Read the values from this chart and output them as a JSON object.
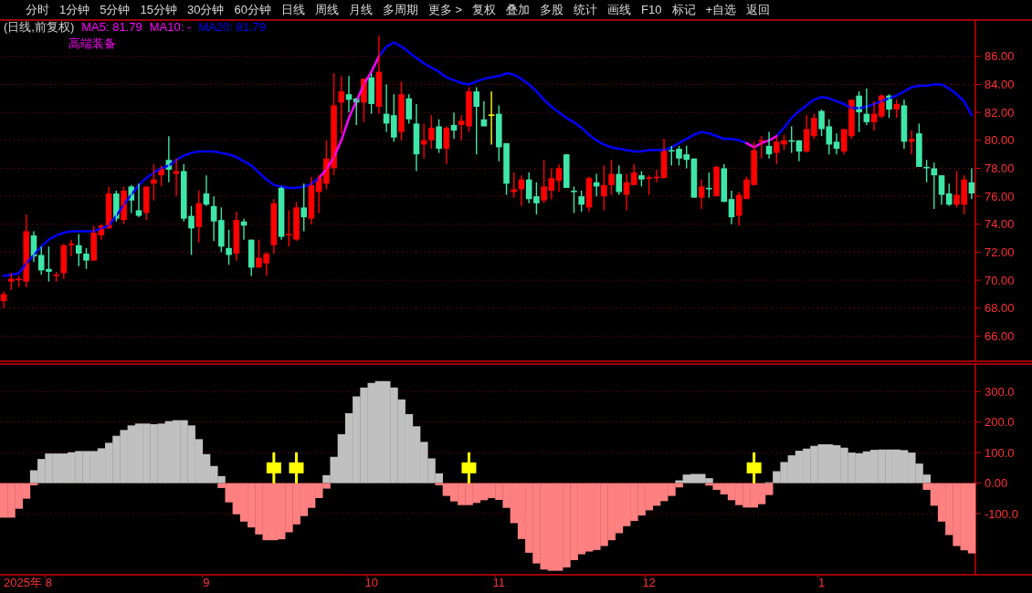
{
  "chart_data": [
    {
      "type": "other",
      "annotations": [
        "分时",
        "1分钟",
        "5分钟",
        "15分钟",
        "30分钟",
        "60分钟",
        "日线",
        "周线",
        "月线",
        "多周期",
        "更多 >",
        "复权",
        "叠加",
        "多股",
        "统计",
        "画线",
        "F10",
        "标记",
        "+自选",
        "返回"
      ]
    },
    {
      "type": "candlestick",
      "annotations": [
        "(日线,前复权)",
        "MA5: 81.79",
        "MA10: -",
        "MA20: 81.79",
        "高端装备"
      ],
      "categories": [
        null,
        null,
        null,
        null,
        null,
        null,
        "8",
        null,
        null,
        null,
        null,
        null,
        null,
        null,
        null,
        null,
        null,
        null,
        null,
        null,
        null,
        null,
        null,
        null,
        null,
        null,
        null,
        "9",
        null,
        null,
        null,
        null,
        null,
        null,
        null,
        null,
        null,
        null,
        null,
        null,
        null,
        null,
        null,
        null,
        null,
        null,
        null,
        null,
        null,
        "10",
        null,
        null,
        null,
        null,
        null,
        null,
        null,
        null,
        null,
        null,
        null,
        null,
        null,
        null,
        null,
        null,
        "11",
        null,
        null,
        null,
        null,
        null,
        null,
        null,
        null,
        null,
        null,
        null,
        null,
        null,
        null,
        null,
        null,
        null,
        null,
        null,
        "12",
        null,
        null,
        null,
        null,
        null,
        null,
        null,
        null,
        null,
        null,
        null,
        null,
        null,
        null,
        null,
        null,
        null,
        null,
        null,
        null,
        null,
        null,
        "1",
        null,
        null,
        null,
        null,
        null,
        null,
        null,
        null,
        null,
        null,
        null,
        null,
        null,
        null,
        null,
        null,
        null,
        null,
        null,
        null
      ],
      "tick_labels": "y",
      "grid": "y",
      "ylim": [
        64.2,
        88.6
      ],
      "yticks": [
        {
          "value": 66,
          "label": "66.00"
        },
        {
          "value": 68,
          "label": "68.00"
        },
        {
          "value": 70,
          "label": "70.00"
        },
        {
          "value": 72,
          "label": "72.00"
        },
        {
          "value": 74,
          "label": "74.00"
        },
        {
          "value": 76,
          "label": "76.00"
        },
        {
          "value": 78,
          "label": "78.00"
        },
        {
          "value": 80,
          "label": "80.00"
        },
        {
          "value": 82,
          "label": "82.00"
        },
        {
          "value": 84,
          "label": "84.00"
        },
        {
          "value": 86,
          "label": "86.00"
        }
      ],
      "ohlc": [
        [
          68.5,
          69.2,
          68.0,
          69.0
        ],
        [
          69.9,
          70.5,
          69.3,
          70.1
        ],
        [
          70.0,
          70.3,
          69.5,
          70.1
        ],
        [
          69.9,
          74.7,
          69.5,
          73.5
        ],
        [
          73.2,
          73.5,
          71.3,
          71.7
        ],
        [
          71.8,
          72.4,
          70.4,
          70.7
        ],
        [
          70.8,
          72.4,
          69.9,
          70.6
        ],
        [
          70.3,
          70.6,
          69.9,
          70.4
        ],
        [
          70.5,
          72.6,
          70.1,
          72.5
        ],
        [
          72.5,
          72.9,
          71.7,
          72.6
        ],
        [
          72.5,
          73.3,
          71.0,
          71.9
        ],
        [
          71.9,
          72.3,
          70.8,
          71.4
        ],
        [
          71.4,
          73.9,
          71.4,
          73.4
        ],
        [
          73.2,
          74.0,
          72.9,
          73.9
        ],
        [
          73.7,
          76.7,
          73.7,
          76.2
        ],
        [
          76.2,
          76.4,
          74.2,
          74.4
        ],
        [
          74.3,
          76.7,
          74.0,
          76.4
        ],
        [
          76.7,
          76.8,
          74.8,
          75.7
        ],
        [
          75.0,
          76.9,
          74.5,
          74.6
        ],
        [
          74.8,
          76.7,
          74.3,
          76.7
        ],
        [
          76.9,
          78.3,
          75.7,
          77.2
        ],
        [
          77.5,
          78.2,
          76.7,
          78.0
        ],
        [
          78.6,
          80.3,
          77.0,
          77.9
        ],
        [
          77.6,
          78.7,
          76.0,
          77.8
        ],
        [
          77.8,
          78.3,
          74.2,
          74.4
        ],
        [
          74.6,
          75.3,
          71.8,
          73.7
        ],
        [
          73.8,
          76.4,
          72.7,
          75.5
        ],
        [
          76.2,
          77.5,
          75.3,
          75.4
        ],
        [
          75.3,
          76.0,
          72.8,
          74.2
        ],
        [
          74.3,
          75.2,
          72.0,
          72.4
        ],
        [
          72.3,
          73.6,
          71.1,
          71.8
        ],
        [
          71.9,
          74.9,
          71.4,
          74.3
        ],
        [
          74.2,
          74.4,
          72.9,
          73.9
        ],
        [
          72.9,
          72.9,
          70.3,
          70.9
        ],
        [
          70.9,
          72.9,
          70.9,
          71.6
        ],
        [
          71.2,
          72.0,
          70.3,
          71.9
        ],
        [
          72.5,
          75.8,
          71.9,
          75.5
        ],
        [
          76.6,
          76.7,
          72.9,
          73.1
        ],
        [
          73.2,
          75.0,
          72.4,
          73.3
        ],
        [
          72.9,
          75.6,
          72.8,
          75.2
        ],
        [
          75.2,
          76.9,
          73.5,
          74.5
        ],
        [
          74.4,
          77.4,
          74.0,
          76.8
        ],
        [
          76.3,
          77.5,
          74.8,
          77.3
        ],
        [
          76.9,
          80.0,
          76.5,
          78.7
        ],
        [
          78.0,
          84.8,
          77.5,
          82.5
        ],
        [
          82.7,
          84.6,
          80.5,
          83.5
        ],
        [
          83.3,
          84.6,
          82.0,
          82.9
        ],
        [
          83.0,
          83.0,
          81.1,
          82.7
        ],
        [
          82.7,
          84.4,
          81.3,
          84.4
        ],
        [
          84.5,
          84.8,
          81.9,
          82.6
        ],
        [
          82.4,
          87.5,
          81.9,
          84.9
        ],
        [
          81.9,
          84.0,
          80.6,
          81.2
        ],
        [
          81.8,
          83.3,
          79.9,
          80.2
        ],
        [
          80.6,
          84.2,
          80.0,
          83.3
        ],
        [
          83.0,
          83.3,
          81.2,
          81.5
        ],
        [
          81.2,
          82.6,
          77.8,
          79.0
        ],
        [
          79.7,
          81.2,
          78.7,
          80.0
        ],
        [
          80.0,
          81.8,
          79.4,
          80.9
        ],
        [
          81.0,
          81.5,
          79.1,
          79.4
        ],
        [
          79.4,
          81.0,
          78.3,
          80.9
        ],
        [
          81.1,
          82.0,
          80.1,
          80.7
        ],
        [
          81.1,
          81.8,
          80.0,
          81.4
        ],
        [
          81.0,
          83.8,
          80.6,
          83.5
        ],
        [
          83.5,
          83.8,
          79.0,
          82.4
        ],
        [
          81.5,
          82.8,
          81.0,
          81.0
        ],
        [
          81.8,
          83.5,
          79.7,
          81.8
        ],
        [
          81.9,
          82.5,
          78.5,
          79.5
        ],
        [
          79.8,
          79.8,
          76.1,
          76.9
        ],
        [
          76.3,
          77.7,
          75.9,
          76.5
        ],
        [
          76.5,
          77.5,
          75.3,
          77.2
        ],
        [
          77.2,
          77.7,
          75.5,
          75.8
        ],
        [
          76.0,
          77.0,
          74.7,
          75.5
        ],
        [
          75.7,
          78.6,
          75.5,
          76.7
        ],
        [
          76.4,
          78.0,
          75.8,
          77.3
        ],
        [
          77.1,
          78.3,
          76.3,
          78.0
        ],
        [
          79.0,
          79.0,
          76.6,
          76.6
        ],
        [
          76.4,
          76.7,
          74.8,
          76.3
        ],
        [
          76.0,
          76.4,
          74.9,
          75.4
        ],
        [
          75.2,
          77.4,
          74.9,
          77.3
        ],
        [
          77.0,
          77.6,
          76.0,
          76.7
        ],
        [
          76.0,
          78.2,
          75.0,
          76.8
        ],
        [
          76.8,
          78.6,
          76.1,
          77.6
        ],
        [
          77.6,
          78.2,
          76.1,
          76.3
        ],
        [
          76.1,
          77.6,
          75.0,
          77.0
        ],
        [
          76.8,
          78.3,
          76.8,
          77.7
        ],
        [
          77.5,
          77.8,
          76.7,
          77.2
        ],
        [
          77.3,
          77.5,
          76.1,
          77.3
        ],
        [
          77.3,
          77.9,
          77.0,
          77.4
        ],
        [
          77.3,
          80.1,
          77.3,
          79.3
        ],
        [
          79.3,
          79.6,
          78.2,
          79.2
        ],
        [
          79.4,
          79.6,
          78.2,
          78.7
        ],
        [
          79.0,
          79.6,
          78.0,
          78.6
        ],
        [
          78.7,
          78.7,
          75.9,
          75.9
        ],
        [
          75.9,
          77.2,
          75.1,
          76.7
        ],
        [
          76.6,
          77.7,
          75.9,
          76.5
        ],
        [
          76.0,
          78.2,
          76.0,
          78.1
        ],
        [
          78.0,
          78.3,
          75.6,
          75.6
        ],
        [
          75.8,
          76.4,
          74.0,
          74.5
        ],
        [
          74.6,
          76.3,
          73.9,
          76.1
        ],
        [
          75.8,
          77.4,
          75.8,
          77.2
        ],
        [
          76.8,
          79.9,
          76.8,
          79.3
        ],
        [
          79.9,
          80.3,
          78.7,
          80.0
        ],
        [
          79.6,
          80.6,
          78.7,
          79.0
        ],
        [
          79.1,
          80.2,
          78.3,
          79.9
        ],
        [
          79.7,
          80.4,
          79.3,
          80.0
        ],
        [
          80.0,
          81.0,
          79.1,
          79.9
        ],
        [
          80.0,
          80.0,
          78.5,
          79.2
        ],
        [
          79.2,
          81.8,
          79.1,
          80.8
        ],
        [
          80.3,
          81.9,
          80.1,
          81.6
        ],
        [
          82.1,
          82.2,
          80.3,
          80.8
        ],
        [
          81.0,
          81.5,
          79.0,
          79.7
        ],
        [
          79.9,
          80.5,
          79.0,
          79.4
        ],
        [
          79.2,
          80.8,
          79.0,
          80.8
        ],
        [
          80.3,
          82.9,
          80.1,
          82.9
        ],
        [
          83.2,
          83.5,
          80.6,
          82.0
        ],
        [
          81.9,
          83.7,
          81.1,
          81.3
        ],
        [
          81.3,
          82.8,
          80.7,
          81.9
        ],
        [
          81.7,
          83.3,
          81.6,
          83.2
        ],
        [
          83.2,
          83.3,
          81.6,
          82.2
        ],
        [
          82.2,
          82.9,
          81.6,
          82.6
        ],
        [
          82.5,
          82.9,
          79.4,
          79.9
        ],
        [
          79.9,
          80.7,
          79.0,
          80.1
        ],
        [
          80.5,
          81.2,
          78.1,
          78.1
        ],
        [
          78.1,
          78.6,
          77.0,
          78.0
        ],
        [
          78.0,
          78.4,
          75.1,
          77.5
        ],
        [
          77.5,
          77.5,
          75.4,
          76.1
        ],
        [
          76.2,
          76.9,
          75.3,
          75.4
        ],
        [
          75.4,
          77.8,
          75.2,
          76.1
        ],
        [
          75.4,
          77.5,
          74.7,
          77.2
        ],
        [
          77.0,
          78.0,
          75.8,
          76.2
        ]
      ],
      "colors": [
        "#ff0000",
        "#ff0000",
        "#ff0000",
        "#ff0000",
        "#3ee6a8",
        "#3ee6a8",
        "#3ee6a8",
        "#ff0000",
        "#ff0000",
        "#ff0000",
        "#3ee6a8",
        "#3ee6a8",
        "#ff0000",
        "#ff0000",
        "#ff0000",
        "#3ee6a8",
        "#ff0000",
        "#3ee6a8",
        "#3ee6a8",
        "#ff0000",
        "#ff0000",
        "#ff0000",
        "#3ee6a8",
        "#ff0000",
        "#3ee6a8",
        "#3ee6a8",
        "#ff0000",
        "#3ee6a8",
        "#3ee6a8",
        "#3ee6a8",
        "#3ee6a8",
        "#ff0000",
        "#3ee6a8",
        "#3ee6a8",
        "#ff0000",
        "#ff0000",
        "#ff0000",
        "#3ee6a8",
        "#ff0000",
        "#ff0000",
        "#3ee6a8",
        "#ff0000",
        "#ff0000",
        "#ff0000",
        "#ff0000",
        "#ff0000",
        "#3ee6a8",
        "#3ee6a8",
        "#ff0000",
        "#3ee6a8",
        "#ff0000",
        "#3ee6a8",
        "#3ee6a8",
        "#ff0000",
        "#3ee6a8",
        "#3ee6a8",
        "#ff0000",
        "#ff0000",
        "#3ee6a8",
        "#ff0000",
        "#3ee6a8",
        "#ff0000",
        "#ff0000",
        "#3ee6a8",
        "#3ee6a8",
        "#ffff00",
        "#3ee6a8",
        "#3ee6a8",
        "#ff0000",
        "#ff0000",
        "#3ee6a8",
        "#3ee6a8",
        "#ff0000",
        "#ff0000",
        "#ff0000",
        "#3ee6a8",
        "#3ee6a8",
        "#3ee6a8",
        "#ff0000",
        "#3ee6a8",
        "#ff0000",
        "#ff0000",
        "#3ee6a8",
        "#ff0000",
        "#ff0000",
        "#3ee6a8",
        "#ff0000",
        "#ff0000",
        "#ff0000",
        "#3ee6a8",
        "#3ee6a8",
        "#3ee6a8",
        "#3ee6a8",
        "#ff0000",
        "#3ee6a8",
        "#ff0000",
        "#3ee6a8",
        "#3ee6a8",
        "#ff0000",
        "#ff0000",
        "#ff0000",
        "#ff0000",
        "#3ee6a8",
        "#ff0000",
        "#ff0000",
        "#3ee6a8",
        "#3ee6a8",
        "#ff0000",
        "#ff0000",
        "#3ee6a8",
        "#3ee6a8",
        "#3ee6a8",
        "#ff0000",
        "#ff0000",
        "#3ee6a8",
        "#3ee6a8",
        "#ff0000",
        "#ff0000",
        "#3ee6a8",
        "#ff0000",
        "#3ee6a8",
        "#ff0000",
        "#3ee6a8",
        "#3ee6a8",
        "#3ee6a8",
        "#3ee6a8",
        "#3ee6a8",
        "#ff0000",
        "#ff0000",
        "#3ee6a8"
      ],
      "series": [
        {
          "type": "line",
          "color": "#0000ff",
          "values": [
            70.3,
            70.4,
            70.5,
            71.2,
            71.8,
            72.4,
            72.9,
            73.2,
            73.4,
            73.5,
            73.5,
            73.5,
            73.5,
            73.7,
            73.9,
            74.6,
            75.4,
            76.1,
            76.8,
            77.3,
            77.7,
            78.0,
            78.2,
            78.6,
            78.9,
            79.1,
            79.2,
            79.2,
            79.2,
            79.1,
            79.0,
            78.8,
            78.5,
            78.2,
            77.7,
            77.2,
            76.8,
            76.7,
            76.6,
            76.6,
            76.7,
            76.9,
            77.3,
            null,
            null,
            null,
            null,
            null,
            null,
            null,
            86.0,
            86.7,
            87.0,
            86.7,
            86.3,
            85.9,
            85.5,
            85.2,
            84.9,
            84.5,
            84.3,
            84.1,
            84.0,
            84.2,
            84.4,
            84.5,
            84.6,
            84.8,
            84.7,
            84.4,
            84.0,
            83.5,
            82.9,
            82.4,
            82.0,
            81.6,
            81.3,
            80.9,
            80.4,
            80.0,
            79.7,
            79.5,
            79.4,
            79.3,
            79.2,
            79.2,
            79.3,
            79.3,
            79.3,
            79.5,
            79.8,
            80.1,
            80.4,
            80.6,
            80.5,
            80.3,
            80.1,
            80.1,
            80.0,
            79.8,
            null,
            null,
            null,
            80.3,
            80.9,
            81.6,
            82.1,
            82.5,
            82.9,
            83.1,
            83.0,
            82.8,
            82.6,
            82.3,
            82.3,
            82.4,
            82.6,
            82.8,
            83.0,
            83.2,
            83.5,
            83.8,
            83.9,
            83.9,
            84.0,
            84.0,
            83.7,
            83.3,
            82.8,
            81.8
          ]
        },
        {
          "type": "line",
          "color": "#ff00ff",
          "values": [
            null,
            null,
            null,
            null,
            null,
            null,
            null,
            null,
            null,
            null,
            null,
            null,
            null,
            null,
            null,
            null,
            null,
            null,
            null,
            null,
            null,
            null,
            null,
            null,
            null,
            null,
            null,
            null,
            null,
            null,
            null,
            null,
            null,
            null,
            null,
            null,
            null,
            null,
            null,
            null,
            null,
            null,
            77.3,
            77.9,
            78.8,
            80.0,
            81.6,
            82.8,
            84.0,
            84.9,
            86.0,
            null,
            null,
            null,
            null,
            null,
            null,
            null,
            null,
            null,
            null,
            null,
            null,
            null,
            null,
            null,
            null,
            null,
            null,
            null,
            null,
            null,
            null,
            null,
            null,
            null,
            null,
            null,
            null,
            null,
            null,
            null,
            null,
            null,
            null,
            null,
            null,
            null,
            null,
            null,
            null,
            null,
            null,
            null,
            null,
            null,
            null,
            null,
            null,
            79.8,
            79.5,
            79.8,
            80.0,
            80.3,
            null,
            null,
            null,
            null,
            null,
            null,
            null,
            null,
            null,
            null,
            null,
            null,
            null,
            null,
            null,
            null,
            null,
            null,
            null,
            null,
            null,
            null,
            null,
            null,
            null,
            null
          ]
        }
      ]
    },
    {
      "type": "bar",
      "annotations": [
        "2025年"
      ],
      "stacked": true,
      "categories": [
        null,
        null,
        null,
        null,
        null,
        null,
        "8",
        null,
        null,
        null,
        null,
        null,
        null,
        null,
        null,
        null,
        null,
        null,
        null,
        null,
        null,
        null,
        null,
        null,
        null,
        null,
        null,
        "9",
        null,
        null,
        null,
        null,
        null,
        null,
        null,
        null,
        null,
        null,
        null,
        null,
        null,
        null,
        null,
        null,
        null,
        null,
        null,
        null,
        null,
        "10",
        null,
        null,
        null,
        null,
        null,
        null,
        null,
        null,
        null,
        null,
        null,
        null,
        null,
        null,
        null,
        null,
        "11",
        null,
        null,
        null,
        null,
        null,
        null,
        null,
        null,
        null,
        null,
        null,
        null,
        null,
        null,
        null,
        null,
        null,
        null,
        null,
        "12",
        null,
        null,
        null,
        null,
        null,
        null,
        null,
        null,
        null,
        null,
        null,
        null,
        null,
        null,
        null,
        null,
        null,
        null,
        null,
        null,
        null,
        null,
        "1",
        null,
        null,
        null,
        null,
        null,
        null,
        null,
        null,
        null,
        null,
        null,
        null,
        null,
        null,
        null,
        null,
        null,
        null,
        null,
        null
      ],
      "grid": "y",
      "ylim": [
        -300,
        390
      ],
      "yticks": [
        {
          "value": -100,
          "label": "-100.0"
        },
        {
          "value": 0,
          "label": "0.00"
        },
        {
          "value": 100,
          "label": "100.0"
        },
        {
          "value": 200,
          "label": "200.0"
        },
        {
          "value": 300,
          "label": "300.0"
        }
      ],
      "series": [
        {
          "type": "bar",
          "color": "#c0c0c0",
          "values": [
            null,
            null,
            null,
            null,
            42,
            79,
            97,
            97,
            97,
            101,
            105,
            105,
            105,
            114,
            132,
            155,
            174,
            189,
            195,
            195,
            193,
            195,
            203,
            206,
            206,
            189,
            144,
            95,
            56,
            23,
            null,
            null,
            null,
            null,
            null,
            null,
            null,
            null,
            null,
            null,
            null,
            null,
            null,
            26,
            86,
            160,
            229,
            284,
            313,
            328,
            334,
            334,
            313,
            274,
            226,
            186,
            135,
            81,
            32,
            null,
            null,
            null,
            null,
            null,
            null,
            null,
            null,
            null,
            null,
            null,
            null,
            null,
            null,
            null,
            null,
            null,
            null,
            null,
            null,
            null,
            null,
            null,
            null,
            null,
            null,
            null,
            null,
            null,
            null,
            null,
            9,
            28,
            30,
            30,
            16,
            null,
            null,
            null,
            null,
            null,
            null,
            null,
            3,
            39,
            69,
            91,
            106,
            113,
            122,
            127,
            127,
            124,
            116,
            100,
            98,
            104,
            109,
            110,
            110,
            110,
            108,
            100,
            64,
            28,
            null,
            null,
            null,
            null,
            null,
            null
          ]
        },
        {
          "type": "bar",
          "color": "#ff8080",
          "values": [
            -113,
            -113,
            -84,
            -51,
            -7,
            null,
            null,
            null,
            null,
            null,
            null,
            null,
            null,
            null,
            null,
            null,
            null,
            null,
            null,
            null,
            null,
            null,
            null,
            null,
            null,
            null,
            null,
            null,
            null,
            -16,
            -63,
            -102,
            -126,
            -145,
            -168,
            -187,
            -187,
            -184,
            -161,
            -135,
            -108,
            -81,
            -49,
            -18,
            null,
            null,
            null,
            null,
            null,
            null,
            null,
            null,
            null,
            null,
            null,
            null,
            null,
            null,
            -7,
            -42,
            -60,
            -72,
            -72,
            -65,
            -56,
            -49,
            -55,
            -81,
            -131,
            -183,
            -228,
            -263,
            -283,
            -287,
            -287,
            -276,
            -252,
            -233,
            -224,
            -219,
            -206,
            -187,
            -164,
            -141,
            -124,
            -106,
            -89,
            -74,
            -59,
            -42,
            -14,
            null,
            null,
            null,
            -8,
            -22,
            -37,
            -56,
            -72,
            -80,
            -80,
            -69,
            -39,
            null,
            null,
            null,
            null,
            null,
            null,
            null,
            null,
            null,
            null,
            null,
            null,
            null,
            null,
            null,
            null,
            null,
            null,
            null,
            null,
            -22,
            -74,
            -126,
            -170,
            -206,
            -220,
            -230
          ]
        },
        {
          "type": "scatter",
          "color": "#ffff00",
          "values": [
            null,
            null,
            null,
            null,
            null,
            null,
            null,
            null,
            null,
            null,
            null,
            null,
            null,
            null,
            null,
            null,
            null,
            null,
            null,
            null,
            null,
            null,
            null,
            null,
            null,
            null,
            null,
            null,
            null,
            null,
            null,
            null,
            null,
            null,
            null,
            null,
            50,
            null,
            null,
            50,
            null,
            null,
            null,
            null,
            null,
            null,
            null,
            null,
            null,
            null,
            null,
            null,
            null,
            null,
            null,
            null,
            null,
            null,
            null,
            null,
            null,
            null,
            50,
            null,
            null,
            null,
            null,
            null,
            null,
            null,
            null,
            null,
            null,
            null,
            null,
            null,
            null,
            null,
            null,
            null,
            null,
            null,
            null,
            null,
            null,
            null,
            null,
            null,
            null,
            null,
            null,
            null,
            null,
            null,
            null,
            null,
            null,
            null,
            null,
            null,
            50,
            null,
            null,
            null,
            null,
            null,
            null,
            null,
            null,
            null,
            null,
            null,
            null,
            null,
            null,
            null,
            null,
            null,
            null,
            null,
            null,
            null,
            null,
            null,
            null,
            null,
            null,
            null,
            null,
            null
          ]
        }
      ]
    }
  ]
}
